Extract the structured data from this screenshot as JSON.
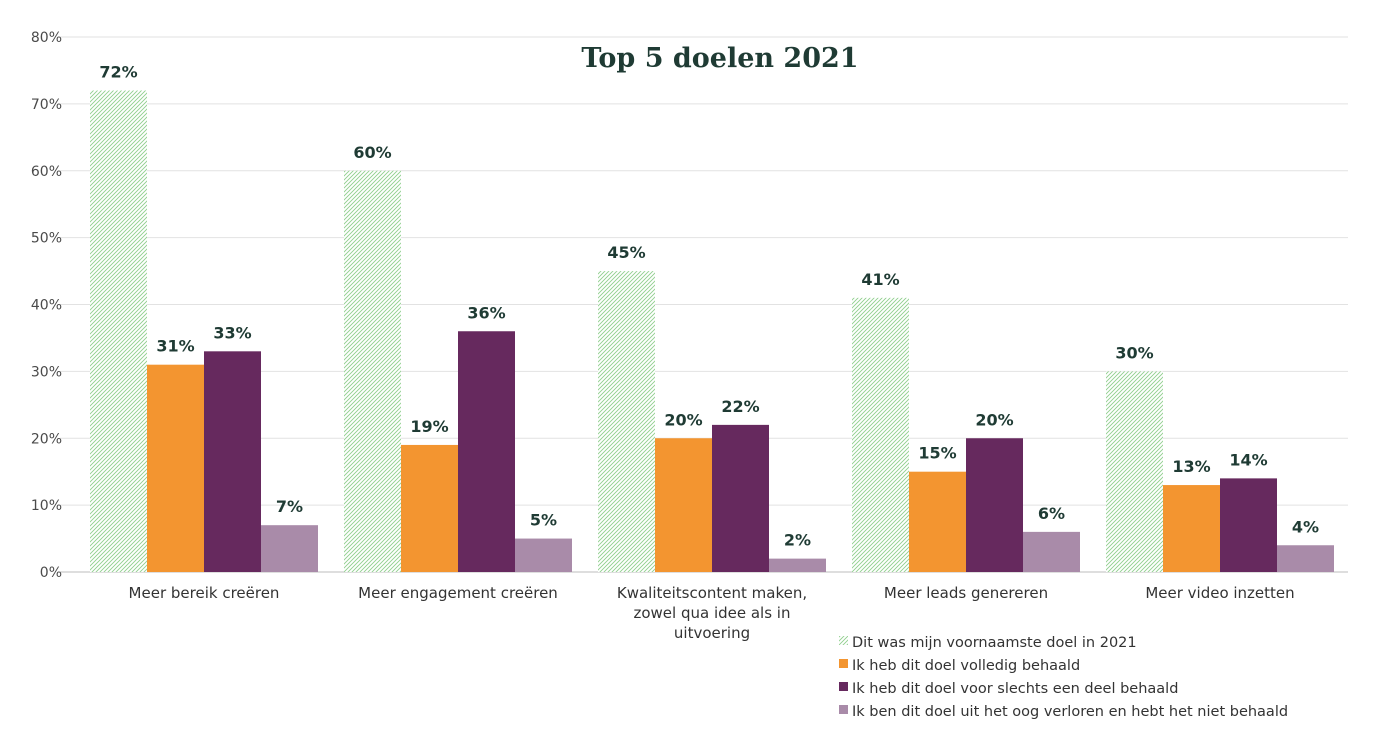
{
  "chart_data": {
    "type": "bar",
    "title": "Top 5 doelen 2021",
    "xlabel": "",
    "ylabel": "",
    "ylim": [
      0,
      80
    ],
    "ytick_step": 10,
    "value_suffix": "%",
    "grid": true,
    "legend_position": "bottom-right",
    "categories": [
      "Meer bereik creëren",
      "Meer engagement creëren",
      "Kwaliteitscontent maken, zowel qua idee als in uitvoering",
      "Meer leads genereren",
      "Meer video inzetten"
    ],
    "category_lines": [
      [
        "Meer bereik creëren"
      ],
      [
        "Meer engagement creëren"
      ],
      [
        "Kwaliteitscontent maken,",
        "zowel qua idee als in",
        "uitvoering"
      ],
      [
        "Meer leads genereren"
      ],
      [
        "Meer video inzetten"
      ]
    ],
    "series": [
      {
        "name": "Dit was mijn voornaamste doel in 2021",
        "values": [
          72,
          60,
          45,
          41,
          30
        ],
        "color": "#8fcf8c",
        "pattern": "hatch"
      },
      {
        "name": "Ik heb dit doel volledig behaald",
        "values": [
          31,
          19,
          20,
          15,
          13
        ],
        "color": "#f39530",
        "pattern": "solid"
      },
      {
        "name": "Ik heb dit doel voor slechts een deel behaald",
        "values": [
          33,
          36,
          22,
          20,
          14
        ],
        "color": "#66295e",
        "pattern": "solid"
      },
      {
        "name": "Ik ben dit doel uit het oog verloren en hebt het niet behaald",
        "values": [
          7,
          5,
          2,
          6,
          4
        ],
        "color": "#a98ba9",
        "pattern": "solid"
      }
    ]
  }
}
